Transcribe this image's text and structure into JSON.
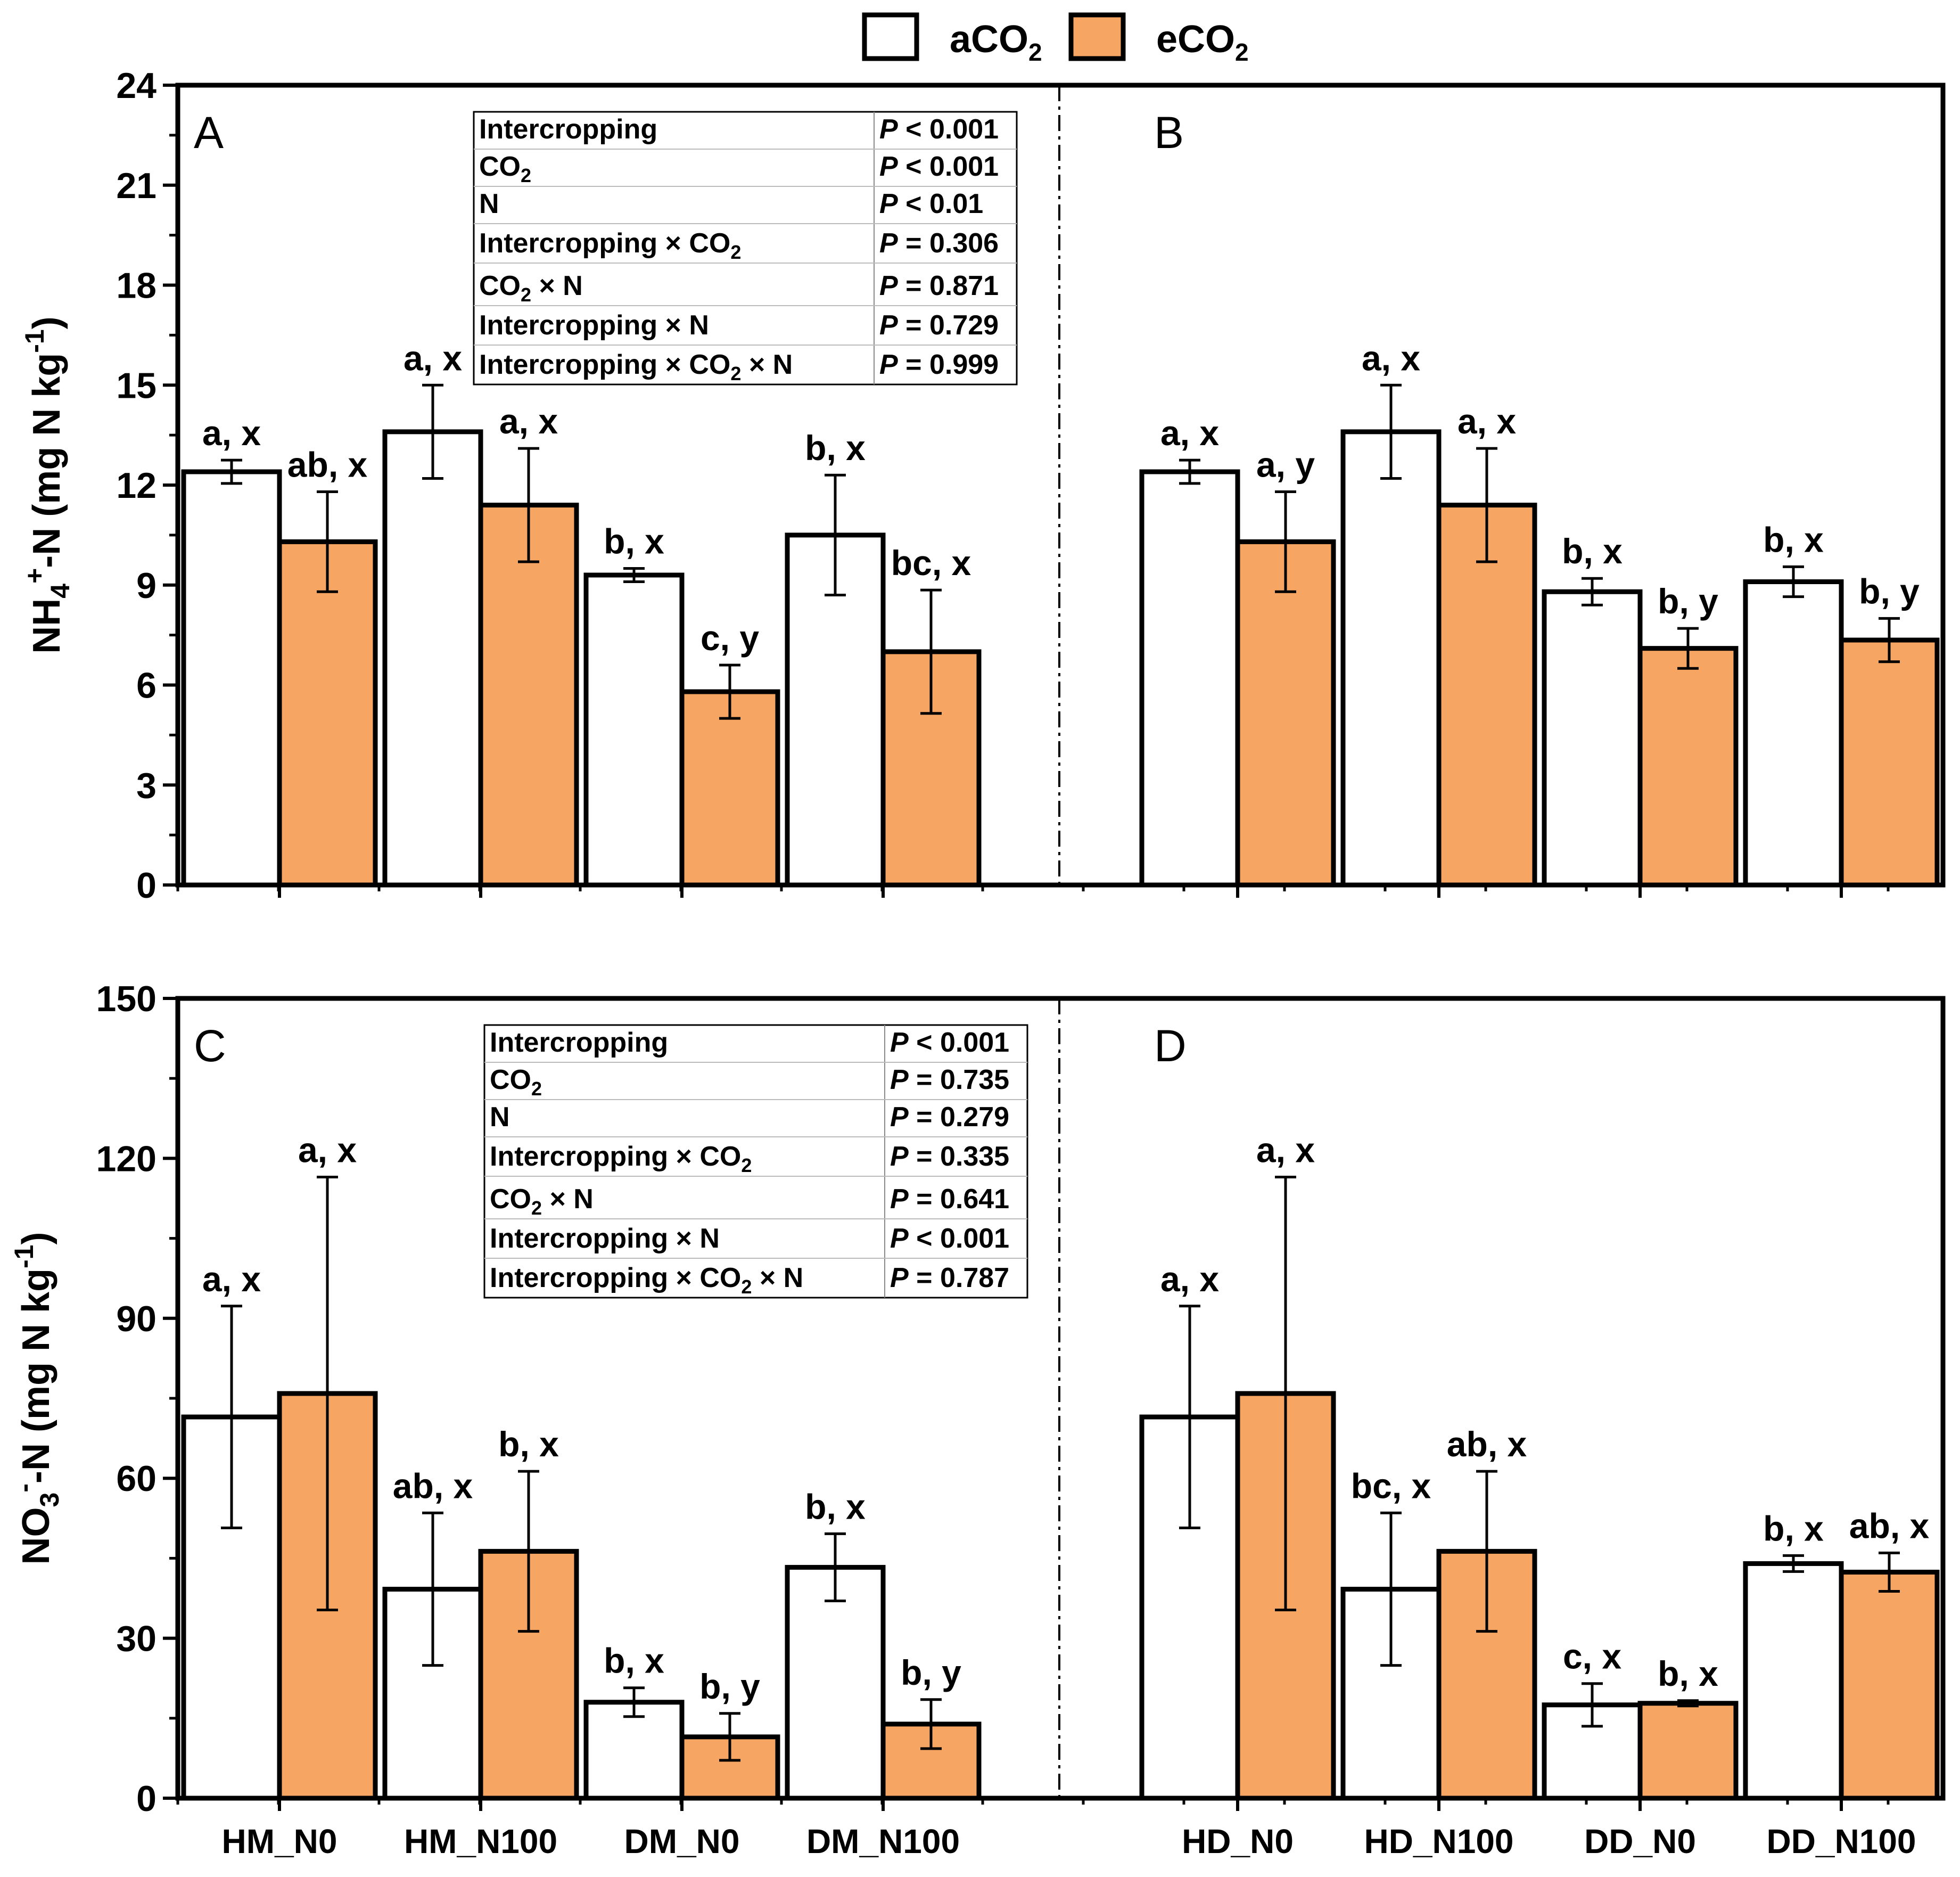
{
  "chart_data": [
    {
      "type": "bar",
      "ylabel_main": "NH",
      "ylabel_sub": "4",
      "ylabel_sup": "+",
      "ylabel_rest": "-N (mg N kg",
      "ylabel_unit_sup": "-1",
      "ylabel_close": ")",
      "ylim": [
        0,
        24
      ],
      "yticks": [
        "0",
        "3",
        "6",
        "9",
        "12",
        "15",
        "18",
        "21",
        "24"
      ],
      "panels": [
        {
          "letter": "A",
          "categories": [
            "HM_N0",
            "HM_N100",
            "DM_N0",
            "DM_N100"
          ],
          "series": [
            {
              "name": "aCO2",
              "values": [
                12.4,
                13.6,
                9.3,
                10.5
              ],
              "errors": [
                0.35,
                1.4,
                0.2,
                1.8
              ],
              "labels": [
                "a, x",
                "a, x",
                "b, x",
                "b, x"
              ]
            },
            {
              "name": "eCO2",
              "values": [
                10.3,
                11.4,
                5.8,
                7.0
              ],
              "errors": [
                1.5,
                1.7,
                0.8,
                1.85
              ],
              "labels": [
                "ab, x",
                "a, x",
                "c, y",
                "bc, x"
              ]
            }
          ],
          "stats": [
            {
              "term": "Intercropping",
              "p_label": "P",
              "p_value": " < 0.001"
            },
            {
              "term": "CO",
              "term_sub": "2",
              "p_label": "P",
              "p_value": " < 0.001"
            },
            {
              "term": "N",
              "p_label": "P",
              "p_value": " < 0.01"
            },
            {
              "term": "Intercropping × CO",
              "term_sub": "2",
              "p_label": "P",
              "p_value": " = 0.306"
            },
            {
              "term": "CO",
              "term_sub": "2",
              "term_after": " × N",
              "p_label": "P",
              "p_value": " = 0.871"
            },
            {
              "term": "Intercropping × N",
              "p_label": "P",
              "p_value": " = 0.729"
            },
            {
              "term": "Intercropping × CO",
              "term_sub": "2",
              "term_after": " × N",
              "p_label": "P",
              "p_value": " = 0.999"
            }
          ]
        },
        {
          "letter": "B",
          "categories": [
            "HD_N0",
            "HD_N100",
            "DD_N0",
            "DD_N100"
          ],
          "series": [
            {
              "name": "aCO2",
              "values": [
                12.4,
                13.6,
                8.8,
                9.1
              ],
              "errors": [
                0.35,
                1.4,
                0.4,
                0.45
              ],
              "labels": [
                "a, x",
                "a, x",
                "b, x",
                "b, x"
              ]
            },
            {
              "name": "eCO2",
              "values": [
                10.3,
                11.4,
                7.1,
                7.35
              ],
              "errors": [
                1.5,
                1.7,
                0.6,
                0.65
              ],
              "labels": [
                "a, y",
                "a, x",
                "b, y",
                "b, y"
              ]
            }
          ]
        }
      ]
    },
    {
      "type": "bar",
      "ylabel_main": "NO",
      "ylabel_sub": "3",
      "ylabel_sup": "-",
      "ylabel_rest": "-N (mg N kg",
      "ylabel_unit_sup": "-1",
      "ylabel_close": ")",
      "ylim": [
        0,
        150
      ],
      "yticks": [
        "0",
        "30",
        "60",
        "90",
        "120",
        "150"
      ],
      "panels": [
        {
          "letter": "C",
          "categories": [
            "HM_N0",
            "HM_N100",
            "DM_N0",
            "DM_N100"
          ],
          "series": [
            {
              "name": "aCO2",
              "values": [
                71.5,
                39.2,
                18.0,
                43.3
              ],
              "errors": [
                20.8,
                14.3,
                2.7,
                6.3
              ],
              "labels": [
                "a, x",
                "ab, x",
                "b, x",
                "b, x"
              ]
            },
            {
              "name": "eCO2",
              "values": [
                75.9,
                46.3,
                11.5,
                13.9
              ],
              "errors": [
                40.6,
                15.0,
                4.4,
                4.6
              ],
              "labels": [
                "a, x",
                "b, x",
                "b, y",
                "b, y"
              ]
            }
          ],
          "stats": [
            {
              "term": "Intercropping",
              "p_label": "P",
              "p_value": " < 0.001"
            },
            {
              "term": "CO",
              "term_sub": "2",
              "p_label": "P",
              "p_value": " = 0.735"
            },
            {
              "term": "N",
              "p_label": "P",
              "p_value": " = 0.279"
            },
            {
              "term": "Intercropping × CO",
              "term_sub": "2",
              "p_label": "P",
              "p_value": " = 0.335"
            },
            {
              "term": "CO",
              "term_sub": "2",
              "term_after": " × N",
              "p_label": "P",
              "p_value": " = 0.641"
            },
            {
              "term": "Intercropping × N",
              "p_label": "P",
              "p_value": " < 0.001"
            },
            {
              "term": "Intercropping × CO",
              "term_sub": "2",
              "term_after": " × N",
              "p_label": "P",
              "p_value": " = 0.787"
            }
          ]
        },
        {
          "letter": "D",
          "categories": [
            "HD_N0",
            "HD_N100",
            "DD_N0",
            "DD_N100"
          ],
          "series": [
            {
              "name": "aCO2",
              "values": [
                71.5,
                39.2,
                17.5,
                44.0
              ],
              "errors": [
                20.8,
                14.3,
                4.0,
                1.5
              ],
              "labels": [
                "a, x",
                "bc, x",
                "c, x",
                "b, x"
              ]
            },
            {
              "name": "eCO2",
              "values": [
                75.9,
                46.3,
                17.8,
                42.4
              ],
              "errors": [
                40.6,
                15.0,
                0.5,
                3.6
              ],
              "labels": [
                "a, x",
                "ab, x",
                "b, x",
                "ab, x"
              ]
            }
          ]
        }
      ]
    }
  ],
  "legend": [
    {
      "prefix": "aCO",
      "sub": "2",
      "color": "#ffffff"
    },
    {
      "prefix": "eCO",
      "sub": "2",
      "color": "#f6a562"
    }
  ],
  "colors": {
    "aCO2": "#ffffff",
    "eCO2": "#f6a562",
    "stroke": "#000000"
  }
}
